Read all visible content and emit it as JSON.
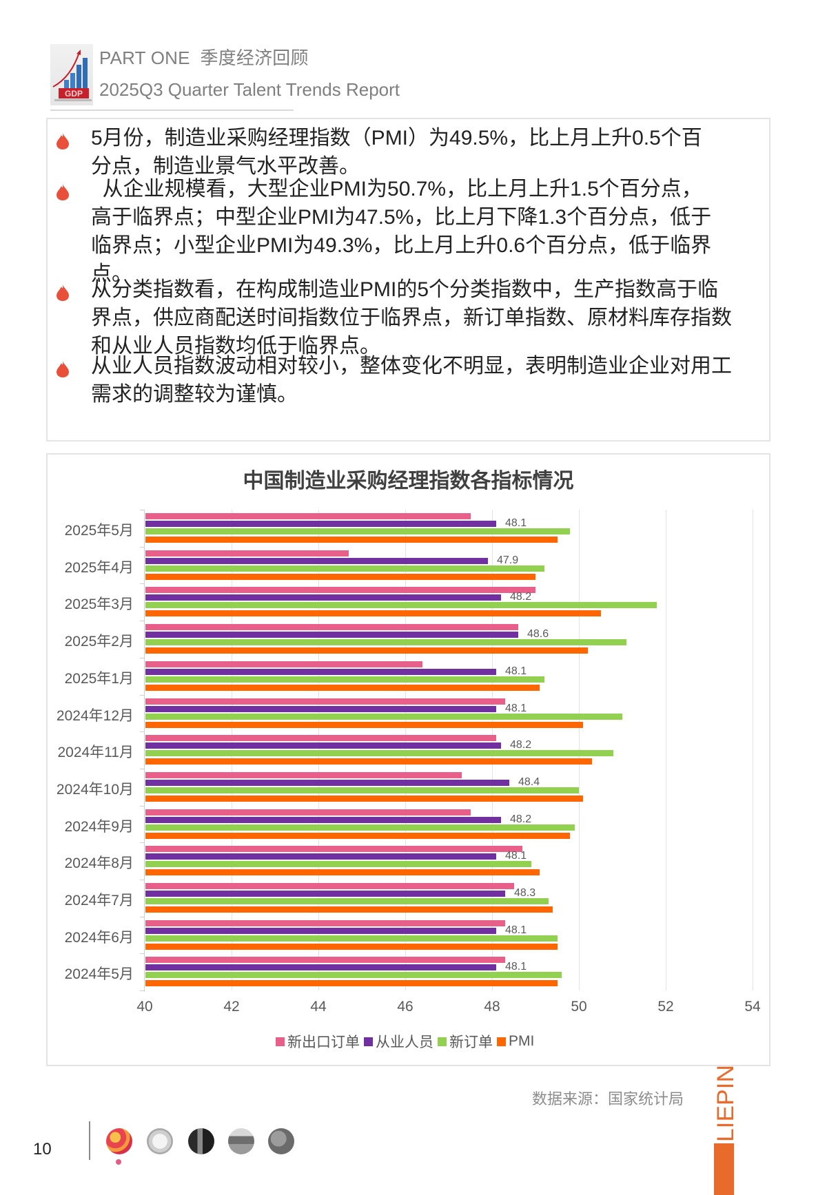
{
  "header": {
    "part_label": "PART ONE  季度经济回顾",
    "subtitle": "2025Q3 Quarter Talent Trends Report",
    "icon": "gdp-growth-icon"
  },
  "bullets": [
    {
      "icon": "flame-bullet-icon",
      "lines": [
        "5月份，制造业采购经理指数（PMI）为49.5%，比上月上升0.5个百",
        "分点，制造业景气水平改善。"
      ]
    },
    {
      "icon": "flame-bullet-icon",
      "lines": [
        "  从企业规模看，大型企业PMI为50.7%，比上月上升1.5个百分点，",
        "高于临界点；中型企业PMI为47.5%，比上月下降1.3个百分点，低于",
        "临界点；小型企业PMI为49.3%，比上月上升0.6个百分点，低于临界",
        "点。"
      ]
    },
    {
      "icon": "flame-bullet-icon",
      "lines": [
        "从分类指数看，在构成制造业PMI的5个分类指数中，生产指数高于临",
        "界点，供应商配送时间指数位于临界点，新订单指数、原材料库存指数",
        "和从业人员指数均低于临界点。"
      ]
    },
    {
      "icon": "flame-bullet-icon",
      "lines": [
        "从业人员指数波动相对较小，整体变化不明显，表明制造业企业对用工",
        "需求的调整较为谨慎。"
      ]
    }
  ],
  "colors": {
    "export_orders": "#E8608A",
    "employment": "#7030A0",
    "new_orders": "#92D050",
    "pmi": "#FF6600",
    "brand": "#E86B2C"
  },
  "chart_data": {
    "type": "bar",
    "orientation": "horizontal",
    "title": "中国制造业采购经理指数各指标情况",
    "xlabel": "",
    "ylabel": "",
    "xlim": [
      40,
      54
    ],
    "xticks": [
      "40",
      "42",
      "44",
      "46",
      "48",
      "50",
      "52",
      "54"
    ],
    "grid": true,
    "legend_position": "bottom",
    "categories": [
      "2025年5月",
      "2025年4月",
      "2025年3月",
      "2025年2月",
      "2025年1月",
      "2024年12月",
      "2024年11月",
      "2024年10月",
      "2024年9月",
      "2024年8月",
      "2024年7月",
      "2024年6月",
      "2024年5月"
    ],
    "series": [
      {
        "name": "新出口订单",
        "values": [
          47.5,
          44.7,
          49.0,
          48.6,
          46.4,
          48.3,
          48.1,
          47.3,
          47.5,
          48.7,
          48.5,
          48.3,
          48.3
        ]
      },
      {
        "name": "从业人员",
        "values": [
          48.1,
          47.9,
          48.2,
          48.6,
          48.1,
          48.1,
          48.2,
          48.4,
          48.2,
          48.1,
          48.3,
          48.1,
          48.1
        ],
        "data_labels": true
      },
      {
        "name": "新订单",
        "values": [
          49.8,
          49.2,
          51.8,
          51.1,
          49.2,
          51.0,
          50.8,
          50.0,
          49.9,
          48.9,
          49.3,
          49.5,
          49.6
        ]
      },
      {
        "name": "PMI",
        "values": [
          49.5,
          49.0,
          50.5,
          50.2,
          49.1,
          50.1,
          50.3,
          50.1,
          49.8,
          49.1,
          49.4,
          49.5,
          49.5
        ]
      }
    ]
  },
  "source": "数据来源：国家统计局",
  "brand": "LIEPIN",
  "footer": {
    "page_number": "10",
    "thumbnails": [
      "thumb-fruit",
      "thumb-shirt",
      "thumb-street",
      "thumb-ship",
      "thumb-map"
    ],
    "active_index": 0
  }
}
